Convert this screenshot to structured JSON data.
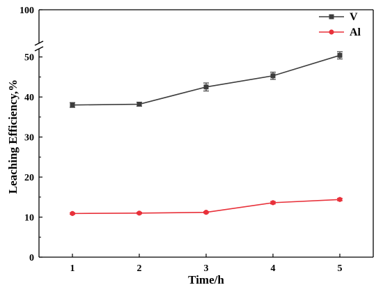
{
  "chart_data": {
    "type": "line",
    "xlabel": "Time/h",
    "ylabel": "Leaching Efficiency,%",
    "x": [
      1,
      2,
      3,
      4,
      5
    ],
    "xlim": [
      0.5,
      5.5
    ],
    "ylim": [
      0,
      100
    ],
    "y_axis_break": [
      55,
      95
    ],
    "y_ticks": [
      0,
      10,
      20,
      30,
      40,
      50,
      100
    ],
    "series": [
      {
        "name": "V",
        "color": "#3d3d3d",
        "marker": "square",
        "values": [
          38.0,
          38.2,
          42.5,
          45.3,
          50.4
        ],
        "errors": [
          0.6,
          0.5,
          1.0,
          0.9,
          0.9
        ]
      },
      {
        "name": "Al",
        "color": "#e8313a",
        "marker": "circle",
        "values": [
          10.9,
          11.0,
          11.2,
          13.6,
          14.4
        ],
        "errors": [
          0.2,
          0.2,
          0.2,
          0.3,
          0.3
        ]
      }
    ],
    "legend_position": "top-right",
    "grid": false
  }
}
